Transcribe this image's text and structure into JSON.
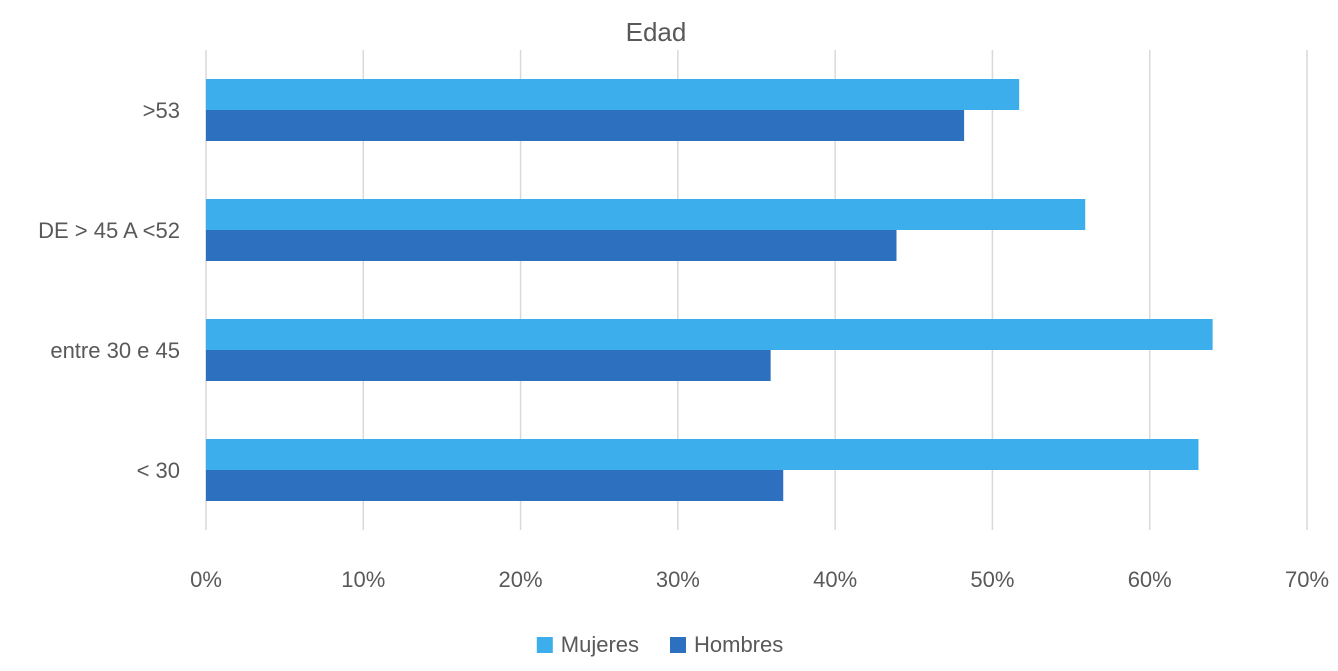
{
  "chart_data": {
    "type": "bar",
    "orientation": "horizontal",
    "title": "Edad",
    "categories": [
      ">53",
      "DE > 45 A <52",
      "entre 30 e 45",
      "< 30"
    ],
    "series": [
      {
        "name": "Mujeres",
        "color": "#3DAEEC",
        "values": [
          51.7,
          55.9,
          64.0,
          63.1
        ]
      },
      {
        "name": "Hombres",
        "color": "#2E70C0",
        "values": [
          48.2,
          43.9,
          35.9,
          36.7
        ]
      }
    ],
    "xlim": [
      0,
      70
    ],
    "xticks": [
      "0%",
      "10%",
      "20%",
      "30%",
      "40%",
      "50%",
      "60%",
      "70%"
    ],
    "xlabel": "",
    "ylabel": "",
    "grid": "vertical",
    "legend": "bottom-center",
    "colors": {
      "grid": "#D9D9D9",
      "text": "#595959"
    }
  }
}
